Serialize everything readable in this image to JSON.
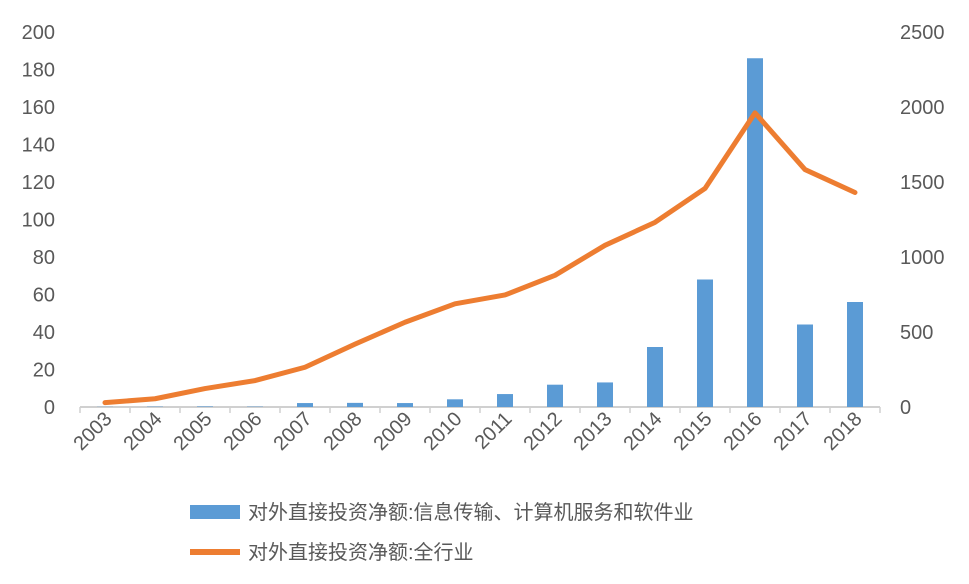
{
  "chart_data": {
    "type": "bar+line",
    "categories": [
      "2003",
      "2004",
      "2005",
      "2006",
      "2007",
      "2008",
      "2009",
      "2010",
      "2011",
      "2012",
      "2013",
      "2014",
      "2015",
      "2016",
      "2017",
      "2018"
    ],
    "series": [
      {
        "name": "对外直接投资净额:信息传输、计算机服务和软件业",
        "type": "bar",
        "axis": "left",
        "color": "#5B9BD5",
        "values": [
          0.1,
          0.2,
          0.3,
          0.2,
          2.1,
          2.2,
          2.1,
          4.1,
          6.9,
          11.9,
          13.1,
          32,
          68,
          186,
          44,
          56
        ]
      },
      {
        "name": "对外直接投资净额:全行业",
        "type": "line",
        "axis": "right",
        "color": "#ED7D31",
        "values": [
          29,
          55,
          123,
          176,
          265,
          419,
          565,
          688,
          747,
          878,
          1078,
          1231,
          1457,
          1961,
          1583,
          1430
        ]
      }
    ],
    "left_axis": {
      "ylim": [
        0,
        200
      ],
      "ticks": [
        "0",
        "20",
        "40",
        "60",
        "80",
        "100",
        "120",
        "140",
        "160",
        "180",
        "200"
      ]
    },
    "right_axis": {
      "ylim": [
        0,
        2500
      ],
      "ticks": [
        "0",
        "500",
        "1000",
        "1500",
        "2000",
        "2500"
      ]
    },
    "legend": "bottom"
  }
}
